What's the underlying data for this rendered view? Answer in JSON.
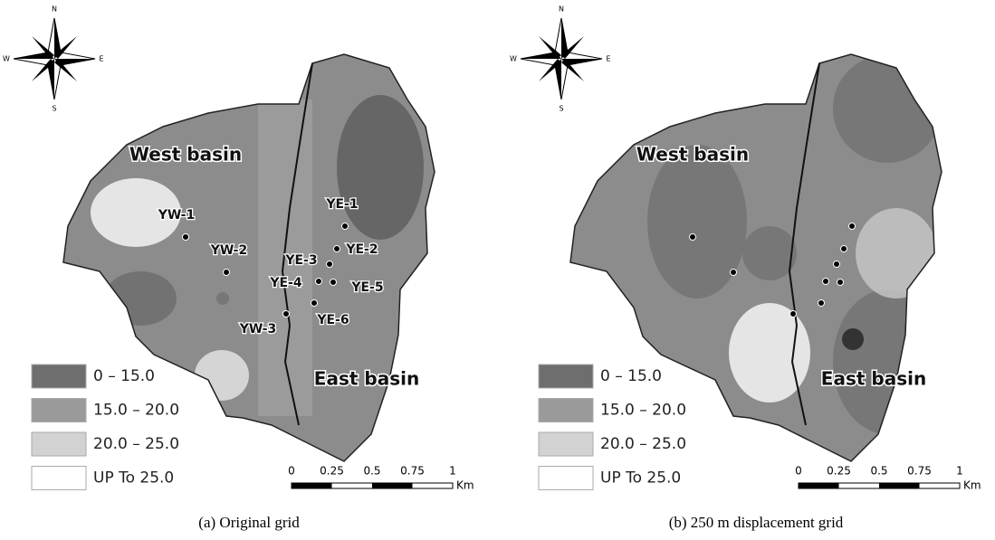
{
  "panels": [
    {
      "caption": "(a) Original grid",
      "compass": {
        "n": "N",
        "s": "S",
        "e": "E",
        "w": "W"
      },
      "basins": [
        "West basin",
        "East basin"
      ],
      "wells": [
        "YW-1",
        "YW-2",
        "YW-3",
        "YE-1",
        "YE-2",
        "YE-3",
        "YE-4",
        "YE-5",
        "YE-6"
      ],
      "legend": [
        {
          "label": "0 – 15.0",
          "color": "#6e6e6e"
        },
        {
          "label": "15.0 – 20.0",
          "color": "#9a9a9a"
        },
        {
          "label": "20.0 – 25.0",
          "color": "#d2d2d2"
        },
        {
          "label": "UP To 25.0",
          "color": "#ffffff"
        }
      ],
      "scale": {
        "ticks": [
          "0",
          "0.25",
          "0.5",
          "0.75",
          "1"
        ],
        "unit": "Km"
      }
    },
    {
      "caption": "(b) 250 m displacement grid",
      "compass": {
        "n": "N",
        "s": "S",
        "e": "E",
        "w": "W"
      },
      "basins": [
        "West basin",
        "East basin"
      ],
      "legend": [
        {
          "label": "0 – 15.0",
          "color": "#6e6e6e"
        },
        {
          "label": "15.0 – 20.0",
          "color": "#9a9a9a"
        },
        {
          "label": "20.0 – 25.0",
          "color": "#d2d2d2"
        },
        {
          "label": "UP To 25.0",
          "color": "#ffffff"
        }
      ],
      "scale": {
        "ticks": [
          "0",
          "0.25",
          "0.5",
          "0.75",
          "1"
        ],
        "unit": "Km"
      }
    }
  ]
}
